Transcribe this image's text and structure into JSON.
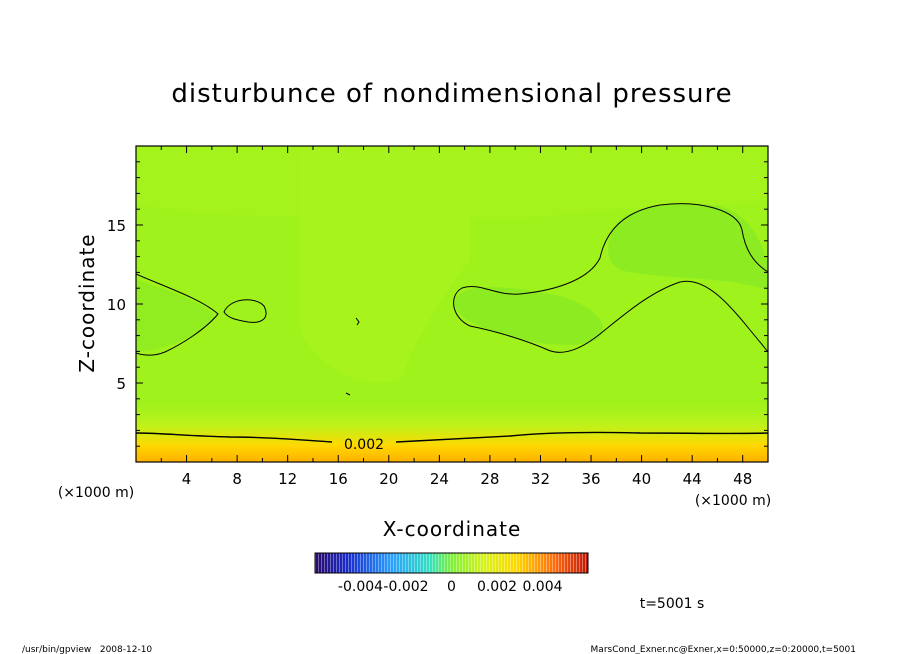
{
  "chart_data": {
    "type": "heatmap",
    "title": "disturbunce of nondimensional pressure",
    "xlabel": "X-coordinate",
    "ylabel": "Z-coordinate",
    "x_unit": "(×1000 m)",
    "y_unit": "(×1000 m)",
    "xlim": [
      0,
      50
    ],
    "ylim": [
      0,
      20
    ],
    "x_ticks": [
      4,
      8,
      12,
      16,
      20,
      24,
      28,
      32,
      36,
      40,
      44,
      48
    ],
    "y_ticks": [
      5,
      10,
      15
    ],
    "contour_label": "0.002",
    "colorbar": {
      "range": [
        -0.006,
        0.006
      ],
      "tick_labels": [
        "-0.004",
        "-0.002",
        "0",
        "0.002",
        "0.004"
      ],
      "tick_values": [
        -0.004,
        -0.002,
        0,
        0.002,
        0.004
      ]
    },
    "time_label": "t=5001 s"
  },
  "footer": {
    "left": "/usr/bin/gpview   2008-12-10",
    "right": "MarsCond_Exner.nc@Exner,x=0:50000,z=0:20000,t=5001"
  },
  "colors": {
    "field_base": "#9ff21c",
    "field_high": "#ffb800",
    "contour": "#000000"
  }
}
